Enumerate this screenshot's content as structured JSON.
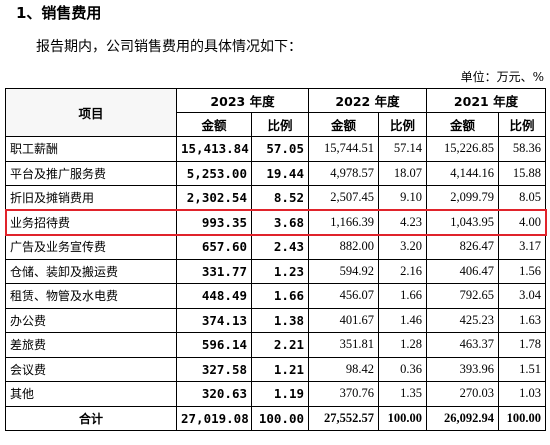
{
  "heading": "1、销售费用",
  "intro": "报告期内，公司销售费用的具体情况如下：",
  "unit": "单位：万元、%",
  "table": {
    "item_header": "项目",
    "years": [
      "2023 年度",
      "2022 年度",
      "2021 年度"
    ],
    "sub_headers": [
      "金额",
      "比例",
      "金额",
      "比例",
      "金额",
      "比例"
    ],
    "rows": [
      {
        "name": "职工薪酬",
        "values": [
          "15,413.84",
          "57.05",
          "15,744.51",
          "57.14",
          "15,226.85",
          "58.36"
        ]
      },
      {
        "name": "平台及推广服务费",
        "values": [
          "5,253.00",
          "19.44",
          "4,978.57",
          "18.07",
          "4,144.16",
          "15.88"
        ]
      },
      {
        "name": "折旧及摊销费用",
        "values": [
          "2,302.54",
          "8.52",
          "2,507.45",
          "9.10",
          "2,099.79",
          "8.05"
        ]
      },
      {
        "name": "业务招待费",
        "values": [
          "993.35",
          "3.68",
          "1,166.39",
          "4.23",
          "1,043.95",
          "4.00"
        ],
        "highlighted": true
      },
      {
        "name": "广告及业务宣传费",
        "values": [
          "657.60",
          "2.43",
          "882.00",
          "3.20",
          "826.47",
          "3.17"
        ]
      },
      {
        "name": "仓储、装卸及搬运费",
        "values": [
          "331.77",
          "1.23",
          "594.92",
          "2.16",
          "406.47",
          "1.56"
        ]
      },
      {
        "name": "租赁、物管及水电费",
        "values": [
          "448.49",
          "1.66",
          "456.07",
          "1.66",
          "792.65",
          "3.04"
        ]
      },
      {
        "name": "办公费",
        "values": [
          "374.13",
          "1.38",
          "401.67",
          "1.46",
          "425.23",
          "1.63"
        ]
      },
      {
        "name": "差旅费",
        "values": [
          "596.14",
          "2.21",
          "351.81",
          "1.28",
          "463.37",
          "1.78"
        ]
      },
      {
        "name": "会议费",
        "values": [
          "327.58",
          "1.21",
          "98.42",
          "0.36",
          "393.96",
          "1.51"
        ]
      },
      {
        "name": "其他",
        "values": [
          "320.63",
          "1.19",
          "370.76",
          "1.35",
          "270.03",
          "1.03"
        ]
      }
    ],
    "total": {
      "name": "合计",
      "values": [
        "27,019.08",
        "100.00",
        "27,552.57",
        "100.00",
        "26,092.94",
        "100.00"
      ]
    }
  },
  "highlight_color": "#e0232b"
}
